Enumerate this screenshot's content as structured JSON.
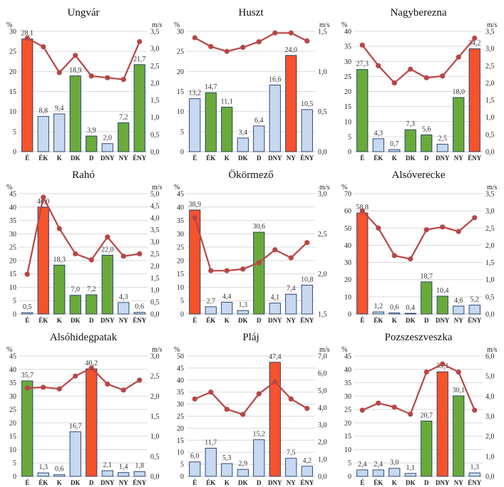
{
  "categories": [
    "É",
    "ÉK",
    "K",
    "DK",
    "D",
    "DNY",
    "NY",
    "ÉNY"
  ],
  "colors": {
    "low": "#c6d9f1",
    "mid": "#6aaa3a",
    "high": "#f4532c",
    "line": "#b84545",
    "edge": "#1f3864"
  },
  "chart_data": [
    {
      "type": "bar",
      "title": "Ungvár",
      "ylabel": "%",
      "y2label": "m/s",
      "ylim": [
        0,
        30
      ],
      "ystep": 5,
      "y2lim": [
        0,
        3.5
      ],
      "y2step": 0.5,
      "y2dec": 1,
      "values": [
        28.1,
        8.8,
        9.4,
        18.9,
        3.9,
        2.0,
        7.2,
        21.7
      ],
      "labels": [
        "28,1",
        "8,8",
        "9,4",
        "18,9",
        "3,9",
        "2,0",
        "7,2",
        "21,7"
      ],
      "colors": [
        "high",
        "low",
        "low",
        "mid",
        "mid",
        "low",
        "mid",
        "mid"
      ],
      "line": [
        3.3,
        3.05,
        2.3,
        2.8,
        2.2,
        2.15,
        2.1,
        3.2
      ]
    },
    {
      "type": "bar",
      "title": "Huszt",
      "ylabel": "%",
      "y2label": "m/s",
      "ylim": [
        0,
        30
      ],
      "ystep": 5,
      "y2lim": [
        0,
        1.5
      ],
      "y2step": 0.5,
      "y2dec": 1,
      "values": [
        13.2,
        14.7,
        11.1,
        3.4,
        6.4,
        16.6,
        24.0,
        10.5
      ],
      "labels": [
        "13,2",
        "14,7",
        "11,1",
        "3,4",
        "6,4",
        "16,6",
        "24,0",
        "10,5"
      ],
      "colors": [
        "low",
        "mid",
        "mid",
        "low",
        "low",
        "low",
        "high",
        "low"
      ],
      "line": [
        1.42,
        1.31,
        1.25,
        1.3,
        1.37,
        1.48,
        1.48,
        1.38
      ]
    },
    {
      "type": "bar",
      "title": "Nagyberezna",
      "ylabel": "%",
      "y2label": "m/s",
      "ylim": [
        0,
        40
      ],
      "ystep": 5,
      "y2lim": [
        0,
        3.5
      ],
      "y2step": 0.5,
      "y2dec": 1,
      "values": [
        27.3,
        4.3,
        0.7,
        7.3,
        5.6,
        2.5,
        18.0,
        34.2
      ],
      "labels": [
        "27,3",
        "4,3",
        "0,7",
        "7,3",
        "5,6",
        "2,5",
        "18,0",
        "34,2"
      ],
      "colors": [
        "mid",
        "low",
        "low",
        "mid",
        "mid",
        "low",
        "mid",
        "high"
      ],
      "line": [
        3.1,
        2.5,
        2.0,
        2.4,
        2.15,
        2.2,
        2.75,
        3.3
      ]
    },
    {
      "type": "bar",
      "title": "Rahó",
      "ylabel": "%",
      "y2label": "m/s",
      "ylim": [
        0,
        45
      ],
      "ystep": 5,
      "y2lim": [
        0,
        5.0
      ],
      "y2step": 0.5,
      "y2dec": 1,
      "values": [
        0.5,
        40.0,
        18.3,
        7.0,
        7.2,
        22.0,
        4.3,
        0.6
      ],
      "labels": [
        "0,5",
        "40,0",
        "18,3",
        "7,0",
        "7,2",
        "22,0",
        "4,3",
        "0,6"
      ],
      "colors": [
        "low",
        "high",
        "mid",
        "mid",
        "mid",
        "mid",
        "low",
        "low"
      ],
      "line": [
        1.65,
        4.85,
        3.55,
        2.5,
        2.25,
        3.2,
        2.4,
        2.5
      ]
    },
    {
      "type": "bar",
      "title": "Ökörmező",
      "ylabel": "%",
      "y2label": "m/s",
      "ylim": [
        0,
        45
      ],
      "ystep": 5,
      "y2lim": [
        1.5,
        3.0
      ],
      "y2step": 0.5,
      "y2dec": 1,
      "values": [
        38.9,
        2.7,
        4.4,
        1.3,
        30.6,
        4.1,
        7.4,
        10.8
      ],
      "labels": [
        "38,9",
        "2,7",
        "4,4",
        "1,3",
        "30,6",
        "4,1",
        "7,4",
        "10,8"
      ],
      "colors": [
        "high",
        "low",
        "low",
        "low",
        "mid",
        "low",
        "low",
        "low"
      ],
      "line": [
        2.7,
        2.04,
        2.04,
        2.06,
        2.14,
        2.3,
        2.2,
        2.39
      ]
    },
    {
      "type": "bar",
      "title": "Alsóverecke",
      "ylabel": "%",
      "y2label": "m/s",
      "ylim": [
        0,
        70
      ],
      "ystep": 10,
      "y2lim": [
        0,
        3.5
      ],
      "y2step": 0.5,
      "y2dec": 1,
      "values": [
        58.8,
        1.2,
        0.6,
        0.4,
        18.7,
        10.4,
        4.6,
        5.2
      ],
      "labels": [
        "58,8",
        "1,2",
        "0,6",
        "0,4",
        "18,7",
        "10,4",
        "4,6",
        "5,2"
      ],
      "colors": [
        "high",
        "low",
        "low",
        "low",
        "mid",
        "mid",
        "low",
        "low"
      ],
      "line": [
        3.0,
        2.5,
        1.7,
        1.6,
        2.45,
        2.53,
        2.4,
        2.8
      ]
    },
    {
      "type": "bar",
      "title": "Alsóhidegpatak",
      "ylabel": "%",
      "y2label": "m/s",
      "ylim": [
        0,
        45
      ],
      "ystep": 5,
      "y2lim": [
        0,
        3.0
      ],
      "y2step": 0.5,
      "y2dec": 1,
      "values": [
        35.7,
        1.3,
        0.6,
        16.7,
        40.2,
        2.1,
        1.4,
        1.8
      ],
      "labels": [
        "35,7",
        "1,3",
        "0,6",
        "16,7",
        "40,2",
        "2,1",
        "1,4",
        "1,8"
      ],
      "colors": [
        "mid",
        "low",
        "low",
        "low",
        "high",
        "low",
        "low",
        "low"
      ],
      "line": [
        2.2,
        2.22,
        2.18,
        2.5,
        2.7,
        2.3,
        2.15,
        2.4
      ]
    },
    {
      "type": "bar",
      "title": "Pláj",
      "ylabel": "%",
      "y2label": "m/s",
      "ylim": [
        0,
        50
      ],
      "ystep": 5,
      "y2lim": [
        0,
        7.0
      ],
      "y2step": 1.0,
      "y2dec": 1,
      "values": [
        6.0,
        11.7,
        5.3,
        2.9,
        15.2,
        47.4,
        7.5,
        4.2
      ],
      "labels": [
        "6,0",
        "11,7",
        "5,3",
        "2,9",
        "15,2",
        "47,4",
        "7,5",
        "4,2"
      ],
      "colors": [
        "low",
        "low",
        "low",
        "low",
        "low",
        "high",
        "low",
        "low"
      ],
      "line": [
        4.5,
        4.9,
        3.9,
        3.6,
        4.8,
        5.5,
        4.5,
        3.95
      ]
    },
    {
      "type": "bar",
      "title": "Pozszeszveszka",
      "ylabel": "%",
      "y2label": "m/s",
      "ylim": [
        0,
        45
      ],
      "ystep": 5,
      "y2lim": [
        0,
        6.0
      ],
      "y2step": 1.0,
      "y2dec": 1,
      "values": [
        2.4,
        2.4,
        3.0,
        1.1,
        20.7,
        39.1,
        30.1,
        1.3
      ],
      "labels": [
        "2,4",
        "2,4",
        "3,0",
        "1,1",
        "20,7",
        "39,1",
        "30,1",
        "1,3"
      ],
      "colors": [
        "low",
        "low",
        "low",
        "low",
        "mid",
        "high",
        "mid",
        "low"
      ],
      "line": [
        3.3,
        3.65,
        3.45,
        3.1,
        5.2,
        5.6,
        5.2,
        3.3
      ]
    }
  ]
}
